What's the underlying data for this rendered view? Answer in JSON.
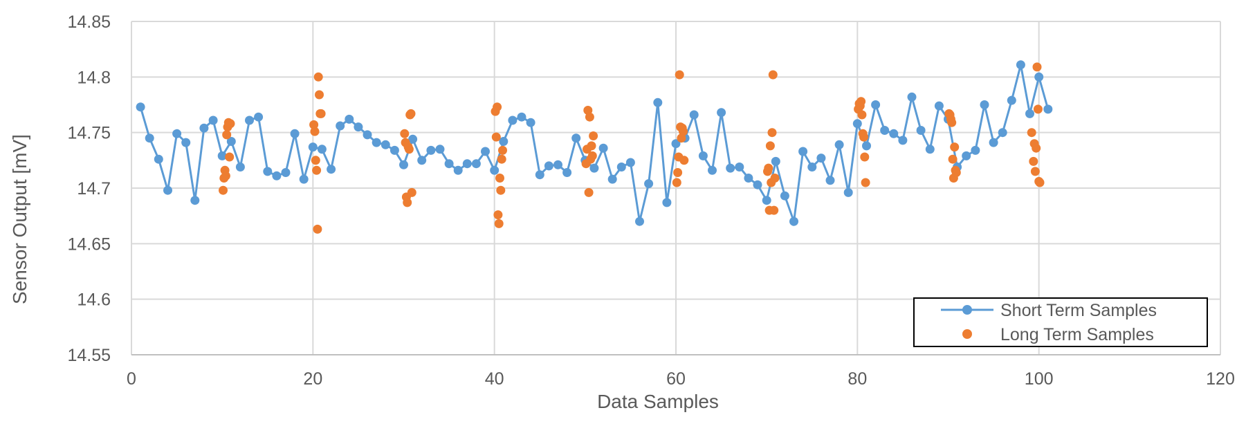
{
  "chart_data": {
    "type": "scatter",
    "title": "",
    "xlabel": "Data Samples",
    "ylabel": "Sensor Output [mV]",
    "xlim": [
      0,
      120
    ],
    "ylim": [
      14.55,
      14.85
    ],
    "x_ticks": [
      0,
      20,
      40,
      60,
      80,
      100,
      120
    ],
    "y_ticks": [
      14.55,
      14.6,
      14.65,
      14.7,
      14.75,
      14.8,
      14.85
    ],
    "x_tick_labels": [
      "0",
      "20",
      "40",
      "60",
      "80",
      "100",
      "120"
    ],
    "y_tick_labels": [
      "14.55",
      "14.6",
      "14.65",
      "14.7",
      "14.75",
      "14.8",
      "14.85"
    ],
    "grid": true,
    "legend_position": "bottom-right",
    "series": [
      {
        "name": "Short Term Samples",
        "style": "line-markers",
        "color": "#5b9bd5",
        "x": [
          1,
          2,
          3,
          4,
          5,
          6,
          7,
          8,
          9,
          10,
          11,
          12,
          13,
          14,
          15,
          16,
          17,
          18,
          19,
          20,
          21,
          22,
          23,
          24,
          25,
          26,
          27,
          28,
          29,
          30,
          31,
          32,
          33,
          34,
          35,
          36,
          37,
          38,
          39,
          40,
          41,
          42,
          43,
          44,
          45,
          46,
          47,
          48,
          49,
          50,
          51,
          52,
          53,
          54,
          55,
          56,
          57,
          58,
          59,
          60,
          61,
          62,
          63,
          64,
          65,
          66,
          67,
          68,
          69,
          70,
          71,
          72,
          73,
          74,
          75,
          76,
          77,
          78,
          79,
          80,
          81,
          82,
          83,
          84,
          85,
          86,
          87,
          88,
          89,
          90,
          91,
          92,
          93,
          94,
          95,
          96,
          97,
          98,
          99,
          100,
          101
        ],
        "y": [
          14.773,
          14.745,
          14.726,
          14.698,
          14.749,
          14.741,
          14.689,
          14.754,
          14.761,
          14.729,
          14.742,
          14.719,
          14.761,
          14.764,
          14.715,
          14.711,
          14.714,
          14.749,
          14.708,
          14.737,
          14.735,
          14.717,
          14.756,
          14.762,
          14.755,
          14.748,
          14.741,
          14.739,
          14.734,
          14.721,
          14.744,
          14.725,
          14.734,
          14.735,
          14.722,
          14.716,
          14.722,
          14.722,
          14.733,
          14.716,
          14.742,
          14.761,
          14.764,
          14.759,
          14.712,
          14.72,
          14.721,
          14.714,
          14.745,
          14.725,
          14.718,
          14.736,
          14.708,
          14.719,
          14.723,
          14.67,
          14.704,
          14.777,
          14.687,
          14.74,
          14.745,
          14.766,
          14.729,
          14.716,
          14.768,
          14.718,
          14.719,
          14.709,
          14.703,
          14.689,
          14.724,
          14.693,
          14.67,
          14.733,
          14.719,
          14.727,
          14.707,
          14.739,
          14.696,
          14.758,
          14.738,
          14.775,
          14.752,
          14.749,
          14.743,
          14.782,
          14.752,
          14.735,
          14.774,
          14.762,
          14.719,
          14.729,
          14.734,
          14.775,
          14.741,
          14.75,
          14.779,
          14.811,
          14.767,
          14.8,
          14.771
        ]
      },
      {
        "name": "Long Term Samples",
        "style": "markers",
        "color": "#ed7d31",
        "x": [
          10.1,
          10.2,
          10.3,
          10.4,
          10.5,
          10.6,
          10.7,
          10.8,
          10.9,
          20.1,
          20.2,
          20.3,
          20.4,
          20.5,
          20.6,
          20.7,
          20.8,
          20.9,
          30.1,
          30.2,
          30.3,
          30.4,
          30.5,
          30.6,
          30.7,
          30.8,
          30.9,
          40.1,
          40.2,
          40.3,
          40.4,
          40.5,
          40.6,
          40.7,
          40.8,
          40.9,
          50.1,
          50.2,
          50.3,
          50.4,
          50.5,
          50.6,
          50.7,
          50.8,
          50.9,
          60.1,
          60.2,
          60.3,
          60.4,
          60.5,
          60.6,
          60.7,
          60.8,
          60.9,
          70.1,
          70.2,
          70.3,
          70.4,
          70.5,
          70.6,
          70.7,
          70.8,
          70.9,
          80.1,
          80.2,
          80.3,
          80.4,
          80.5,
          80.6,
          80.7,
          80.8,
          80.9,
          90.1,
          90.2,
          90.3,
          90.4,
          90.5,
          90.6,
          90.7,
          90.8,
          90.9,
          99.2,
          99.4,
          99.5,
          99.6,
          99.7,
          99.8,
          99.9,
          100.0,
          100.1
        ],
        "y": [
          14.698,
          14.709,
          14.716,
          14.711,
          14.748,
          14.755,
          14.759,
          14.728,
          14.758,
          14.757,
          14.751,
          14.725,
          14.716,
          14.663,
          14.8,
          14.784,
          14.767,
          14.767,
          14.749,
          14.741,
          14.692,
          14.687,
          14.737,
          14.735,
          14.766,
          14.767,
          14.696,
          14.769,
          14.746,
          14.773,
          14.676,
          14.668,
          14.709,
          14.698,
          14.726,
          14.734,
          14.722,
          14.735,
          14.77,
          14.696,
          14.764,
          14.726,
          14.738,
          14.729,
          14.747,
          14.705,
          14.714,
          14.728,
          14.802,
          14.755,
          14.745,
          14.754,
          14.751,
          14.725,
          14.715,
          14.718,
          14.68,
          14.738,
          14.705,
          14.75,
          14.802,
          14.68,
          14.709,
          14.771,
          14.776,
          14.774,
          14.778,
          14.766,
          14.749,
          14.746,
          14.728,
          14.705,
          14.767,
          14.766,
          14.762,
          14.759,
          14.726,
          14.709,
          14.737,
          14.716,
          14.714,
          14.75,
          14.724,
          14.74,
          14.715,
          14.736,
          14.809,
          14.771,
          14.706,
          14.705
        ]
      }
    ]
  }
}
